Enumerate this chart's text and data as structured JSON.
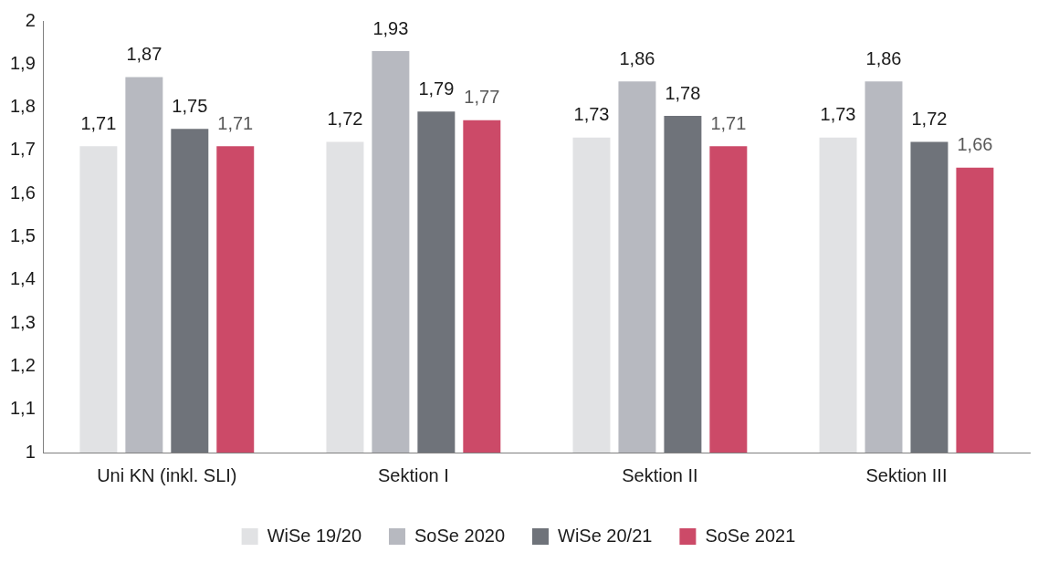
{
  "chart_data": {
    "type": "bar",
    "categories": [
      "Uni KN (inkl. SLI)",
      "Sektion I",
      "Sektion II",
      "Sektion III"
    ],
    "series": [
      {
        "name": "WiSe 19/20",
        "color": "#e1e2e4",
        "values": [
          1.71,
          1.72,
          1.73,
          1.73
        ],
        "value_labels": [
          "1,71",
          "1,72",
          "1,73",
          "1,73"
        ]
      },
      {
        "name": "SoSe 2020",
        "color": "#b7b9c0",
        "values": [
          1.87,
          1.93,
          1.86,
          1.86
        ],
        "value_labels": [
          "1,87",
          "1,93",
          "1,86",
          "1,86"
        ]
      },
      {
        "name": "WiSe 20/21",
        "color": "#6f737a",
        "values": [
          1.75,
          1.79,
          1.78,
          1.72
        ],
        "value_labels": [
          "1,75",
          "1,79",
          "1,78",
          "1,72"
        ]
      },
      {
        "name": "SoSe 2021",
        "color": "#cc4a68",
        "values": [
          1.71,
          1.77,
          1.71,
          1.66
        ],
        "value_labels": [
          "1,71",
          "1,77",
          "1,71",
          "1,66"
        ]
      }
    ],
    "ylim": [
      1,
      2
    ],
    "yticks": [
      {
        "value": 1,
        "label": "1"
      },
      {
        "value": 1.1,
        "label": "1,1"
      },
      {
        "value": 1.2,
        "label": "1,2"
      },
      {
        "value": 1.3,
        "label": "1,3"
      },
      {
        "value": 1.4,
        "label": "1,4"
      },
      {
        "value": 1.5,
        "label": "1,5"
      },
      {
        "value": 1.6,
        "label": "1,6"
      },
      {
        "value": 1.7,
        "label": "1,7"
      },
      {
        "value": 1.8,
        "label": "1,8"
      },
      {
        "value": 1.9,
        "label": "1,9"
      },
      {
        "value": 2,
        "label": "2"
      }
    ],
    "grid": false,
    "legend": "bottom"
  }
}
